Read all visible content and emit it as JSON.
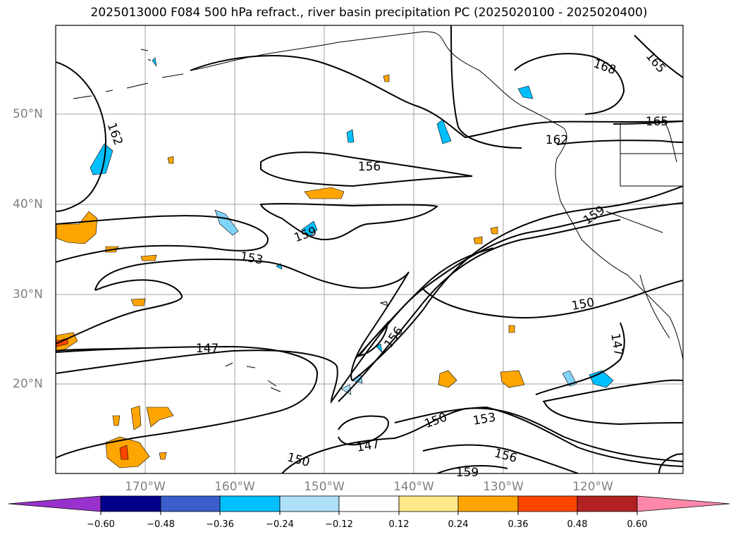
{
  "title": "2025013000 F084 500 hPa refract., river basin precipitation PC (2025020100 - 2025020400)",
  "lat_labels": [
    "50°N",
    "40°N",
    "30°N",
    "20°N"
  ],
  "lon_labels": [
    "170°W",
    "160°W",
    "150°W",
    "140°W",
    "130°W",
    "120°W"
  ],
  "contour_labels": [
    "162",
    "156",
    "159",
    "153",
    "147",
    "156",
    "168",
    "165",
    "165",
    "162",
    "159",
    "150",
    "147",
    "150",
    "153",
    "156",
    "147",
    "150",
    "159"
  ],
  "colorbar": {
    "labels": [
      "−0.60",
      "−0.48",
      "−0.36",
      "−0.24",
      "−0.12",
      "0.12",
      "0.24",
      "0.36",
      "0.48",
      "0.60"
    ],
    "colors": [
      "#9932cc",
      "#00008b",
      "#3a5fcd",
      "#00bfff",
      "#aee0f8",
      "#ffffff",
      "#ffe98a",
      "#ffa500",
      "#ff4500",
      "#b22222",
      "#ff88aa"
    ]
  },
  "colors": {
    "blue_fill": "#00bfff",
    "light_blue_fill": "#aee0f8",
    "orange_fill": "#ffa500",
    "yellow_fill": "#ffe98a",
    "red_fill": "#ff4500",
    "grid": "#a0a0a0"
  }
}
